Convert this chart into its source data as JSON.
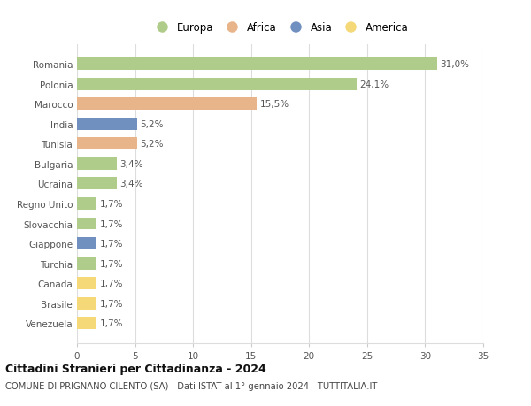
{
  "categories": [
    "Romania",
    "Polonia",
    "Marocco",
    "India",
    "Tunisia",
    "Bulgaria",
    "Ucraina",
    "Regno Unito",
    "Slovacchia",
    "Giappone",
    "Turchia",
    "Canada",
    "Brasile",
    "Venezuela"
  ],
  "values": [
    31.0,
    24.1,
    15.5,
    5.2,
    5.2,
    3.4,
    3.4,
    1.7,
    1.7,
    1.7,
    1.7,
    1.7,
    1.7,
    1.7
  ],
  "labels": [
    "31,0%",
    "24,1%",
    "15,5%",
    "5,2%",
    "5,2%",
    "3,4%",
    "3,4%",
    "1,7%",
    "1,7%",
    "1,7%",
    "1,7%",
    "1,7%",
    "1,7%",
    "1,7%"
  ],
  "continents": [
    "Europa",
    "Europa",
    "Africa",
    "Asia",
    "Africa",
    "Europa",
    "Europa",
    "Europa",
    "Europa",
    "Asia",
    "Europa",
    "America",
    "America",
    "America"
  ],
  "colors": {
    "Europa": "#b0cc8a",
    "Africa": "#e8b48a",
    "Asia": "#7090c0",
    "America": "#f5d878"
  },
  "legend_order": [
    "Europa",
    "Africa",
    "Asia",
    "America"
  ],
  "title": "Cittadini Stranieri per Cittadinanza - 2024",
  "subtitle": "COMUNE DI PRIGNANO CILENTO (SA) - Dati ISTAT al 1° gennaio 2024 - TUTTITALIA.IT",
  "xlim": [
    0,
    35
  ],
  "xticks": [
    0,
    5,
    10,
    15,
    20,
    25,
    30,
    35
  ],
  "bg_color": "#ffffff",
  "grid_color": "#dddddd",
  "bar_height": 0.62
}
